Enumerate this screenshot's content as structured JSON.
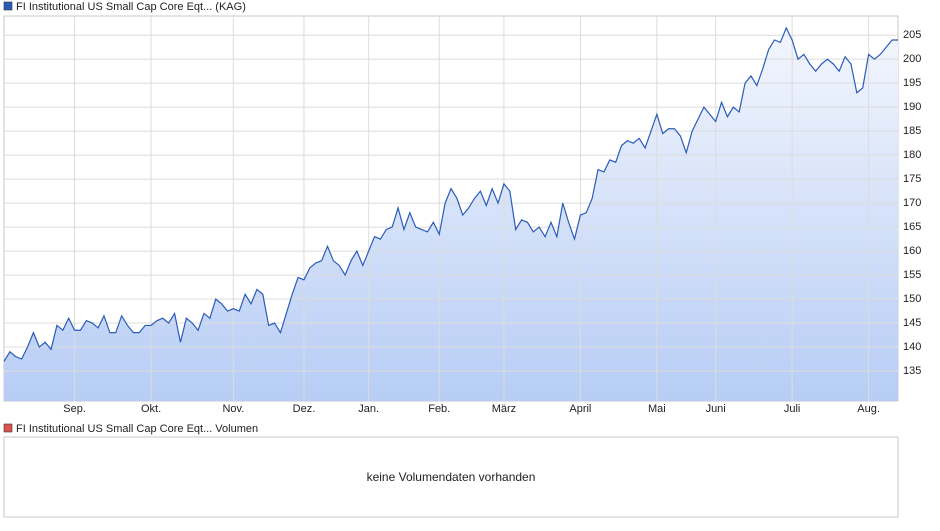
{
  "chart_data": {
    "type": "area",
    "series": [
      {
        "name": "FI Institutional US Small Cap Core Eqt... (KAG)",
        "color": "#2a5cb8",
        "values": [
          137,
          139,
          138,
          137.5,
          140,
          143,
          140,
          141,
          139.5,
          144.5,
          143.5,
          146,
          143.5,
          143.5,
          145.5,
          145,
          144,
          146.5,
          143,
          143,
          146.5,
          144.5,
          143,
          143,
          144.5,
          144.5,
          145.5,
          146,
          145,
          147,
          141,
          146,
          145,
          143.5,
          147,
          146,
          150,
          149,
          147.5,
          148,
          147.5,
          151,
          149,
          152,
          151,
          144.5,
          145,
          143,
          147,
          151,
          154.5,
          154,
          156.5,
          157.5,
          158,
          161,
          158,
          157,
          155,
          158,
          160,
          157,
          160,
          163,
          162.5,
          164.5,
          165,
          169,
          164.5,
          168,
          165,
          164.5,
          164,
          166,
          163.5,
          170,
          173,
          171,
          167.5,
          169,
          171,
          172.5,
          169.5,
          173,
          170,
          174,
          172.5,
          164.5,
          166.5,
          166,
          164,
          165,
          163,
          166,
          163,
          170,
          166,
          162.5,
          167.5,
          168,
          171,
          177,
          176.5,
          179,
          178.5,
          182,
          183,
          182.5,
          183.5,
          181.5,
          185,
          188.5,
          184.5,
          185.5,
          185.5,
          184,
          180.5,
          185,
          187.5,
          190,
          188.5,
          187,
          191,
          188,
          190,
          189,
          195,
          196.5,
          194.5,
          198,
          202,
          204,
          203.5,
          206.5,
          204,
          200,
          201,
          199,
          197.5,
          199,
          200,
          199,
          197.5,
          200.5,
          199,
          193,
          194,
          201,
          200,
          201,
          202.5,
          204,
          204
        ]
      }
    ],
    "xlim": [
      0,
      152
    ],
    "xticks": [
      {
        "value": 12,
        "label": "Sep."
      },
      {
        "value": 25,
        "label": "Okt."
      },
      {
        "value": 39,
        "label": "Nov."
      },
      {
        "value": 51,
        "label": "Dez."
      },
      {
        "value": 62,
        "label": "Jan."
      },
      {
        "value": 74,
        "label": "Feb."
      },
      {
        "value": 85,
        "label": "März"
      },
      {
        "value": 98,
        "label": "April"
      },
      {
        "value": 111,
        "label": "Mai"
      },
      {
        "value": 121,
        "label": "Juni"
      },
      {
        "value": 134,
        "label": "Juli"
      },
      {
        "value": 147,
        "label": "Aug."
      }
    ],
    "ylim": [
      128.75,
      209
    ],
    "yticks": [
      135,
      140,
      145,
      150,
      155,
      160,
      165,
      170,
      175,
      180,
      185,
      190,
      195,
      200,
      205
    ],
    "grid": true
  },
  "volume_panel": {
    "legend": "FI Institutional US Small Cap Core Eqt... Volumen",
    "legend_color": "#d9534f",
    "message": "keine Volumendaten vorhanden"
  }
}
